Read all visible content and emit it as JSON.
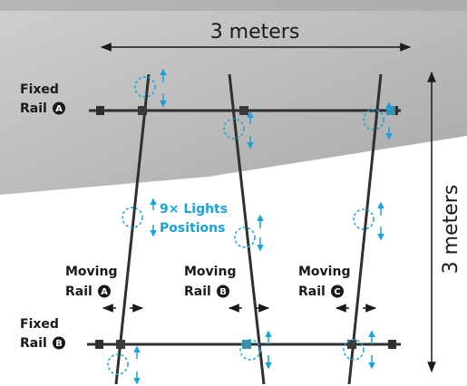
{
  "colors": {
    "light_marker": "#1aa3d9",
    "rail": "#3a3a3a",
    "text": "#1a1a1a",
    "background_panel": "#b9b9b9"
  },
  "dimensions": {
    "width_label": "3 meters",
    "height_label": "3 meters"
  },
  "fixed_rails": [
    {
      "label": "Fixed",
      "badge": "A"
    },
    {
      "label": "Fixed",
      "badge": "B"
    }
  ],
  "rail_word": "Rail",
  "moving_rails": [
    {
      "label": "Moving",
      "badge": "A"
    },
    {
      "label": "Moving",
      "badge": "B"
    },
    {
      "label": "Moving",
      "badge": "C"
    }
  ],
  "lights": {
    "count_label": "9× Lights",
    "positions_label": "Positions"
  }
}
